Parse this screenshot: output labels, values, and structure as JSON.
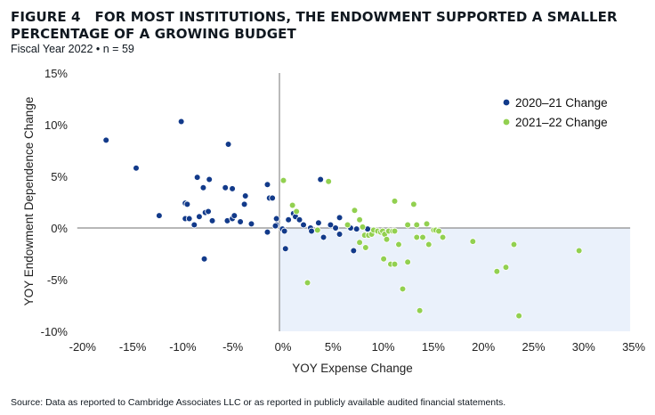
{
  "figure": {
    "title_prefix": "FIGURE 4",
    "title": "FOR MOST INSTITUTIONS, THE ENDOWMENT SUPPORTED A SMALLER PERCENTAGE OF A GROWING BUDGET",
    "subtitle": "Fiscal Year 2022 • n = 59",
    "source": "Source: Data as reported to Cambridge Associates LLC or as reported in publicly available audited financial statements."
  },
  "chart_data": {
    "type": "scatter",
    "title": "FOR MOST INSTITUTIONS, THE ENDOWMENT SUPPORTED A SMALLER PERCENTAGE OF A GROWING BUDGET",
    "subtitle": "Fiscal Year 2022 • n = 59",
    "xlabel": "YOY Expense Change",
    "ylabel": "YOY Endowment Dependence Change",
    "xlim": [
      -20,
      35
    ],
    "ylim": [
      -10,
      15
    ],
    "x_ticks": [
      -20,
      -15,
      -10,
      -5,
      0,
      5,
      10,
      15,
      20,
      25,
      30,
      35
    ],
    "y_ticks": [
      -10,
      -5,
      0,
      5,
      10,
      15
    ],
    "x_tick_labels": [
      "-20%",
      "-15%",
      "-10%",
      "-5%",
      "0%",
      "5%",
      "10%",
      "15%",
      "20%",
      "25%",
      "30%",
      "35%"
    ],
    "y_tick_labels": [
      "-10%",
      "-5%",
      "0%",
      "5%",
      "10%",
      "15%"
    ],
    "grid": false,
    "legend_position": "top-right",
    "shaded_region": {
      "x": [
        0,
        35
      ],
      "y": [
        -10,
        0
      ],
      "color": "#eaf1fb"
    },
    "series": [
      {
        "name": "2020–21 Change",
        "color": "#123a8a",
        "points": [
          [
            -17.3,
            8.5
          ],
          [
            -14.3,
            5.8
          ],
          [
            -12.0,
            1.2
          ],
          [
            -9.8,
            10.3
          ],
          [
            -5.1,
            8.1
          ],
          [
            -8.2,
            4.9
          ],
          [
            -7.0,
            4.7
          ],
          [
            -7.6,
            3.9
          ],
          [
            -5.4,
            3.9
          ],
          [
            -4.7,
            3.8
          ],
          [
            -3.4,
            3.1
          ],
          [
            -3.5,
            2.3
          ],
          [
            -1.2,
            4.2
          ],
          [
            -9.4,
            2.4
          ],
          [
            -9.2,
            2.3
          ],
          [
            -9.4,
            0.9
          ],
          [
            -9.0,
            0.9
          ],
          [
            -8.0,
            1.1
          ],
          [
            -7.4,
            1.5
          ],
          [
            -7.1,
            1.6
          ],
          [
            -6.7,
            0.7
          ],
          [
            -8.5,
            0.3
          ],
          [
            -5.2,
            0.7
          ],
          [
            -4.7,
            0.9
          ],
          [
            -4.5,
            1.2
          ],
          [
            -3.9,
            0.6
          ],
          [
            -2.8,
            0.4
          ],
          [
            -1.2,
            -0.4
          ],
          [
            -7.5,
            -3.0
          ],
          [
            -1.0,
            2.9
          ],
          [
            -0.7,
            2.9
          ],
          [
            -0.3,
            0.9
          ],
          [
            -0.3,
            0.3
          ],
          [
            -0.4,
            0.2
          ],
          [
            0.3,
            -0.1
          ],
          [
            0.5,
            -0.3
          ],
          [
            0.6,
            -2.0
          ],
          [
            0.9,
            0.8
          ],
          [
            1.4,
            1.4
          ],
          [
            1.6,
            1.1
          ],
          [
            2.0,
            0.8
          ],
          [
            2.4,
            0.3
          ],
          [
            3.1,
            0.0
          ],
          [
            3.2,
            -0.3
          ],
          [
            3.9,
            0.5
          ],
          [
            4.1,
            4.7
          ],
          [
            5.1,
            0.3
          ],
          [
            5.6,
            0.0
          ],
          [
            6.0,
            1.0
          ],
          [
            6.0,
            -0.6
          ],
          [
            4.4,
            -0.9
          ],
          [
            7.1,
            0.0
          ],
          [
            7.4,
            -2.2
          ],
          [
            7.7,
            -0.1
          ],
          [
            8.8,
            -0.1
          ]
        ]
      },
      {
        "name": "2021–22 Change",
        "color": "#92d050",
        "points": [
          [
            0.4,
            4.6
          ],
          [
            4.9,
            4.5
          ],
          [
            1.3,
            2.2
          ],
          [
            1.7,
            1.6
          ],
          [
            3.8,
            -0.2
          ],
          [
            2.8,
            -5.3
          ],
          [
            7.5,
            1.7
          ],
          [
            6.8,
            0.3
          ],
          [
            8.0,
            0.8
          ],
          [
            8.3,
            0.1
          ],
          [
            8.5,
            -0.7
          ],
          [
            8.9,
            -0.7
          ],
          [
            8.0,
            -1.4
          ],
          [
            8.6,
            -1.9
          ],
          [
            9.2,
            -0.6
          ],
          [
            9.4,
            -0.2
          ],
          [
            9.8,
            -0.3
          ],
          [
            10.1,
            -0.4
          ],
          [
            10.3,
            -0.3
          ],
          [
            10.5,
            -0.6
          ],
          [
            10.7,
            -1.1
          ],
          [
            10.9,
            -0.3
          ],
          [
            11.3,
            -0.3
          ],
          [
            11.5,
            -0.3
          ],
          [
            11.5,
            2.6
          ],
          [
            10.4,
            -3.0
          ],
          [
            11.1,
            -3.5
          ],
          [
            11.5,
            -3.5
          ],
          [
            11.9,
            -1.6
          ],
          [
            12.8,
            0.3
          ],
          [
            13.7,
            0.3
          ],
          [
            13.4,
            2.3
          ],
          [
            13.7,
            -0.9
          ],
          [
            14.3,
            -0.9
          ],
          [
            14.7,
            0.4
          ],
          [
            14.9,
            -1.6
          ],
          [
            12.8,
            -3.3
          ],
          [
            12.3,
            -5.9
          ],
          [
            14.0,
            -8.0
          ],
          [
            15.4,
            -0.2
          ],
          [
            15.6,
            -0.2
          ],
          [
            15.9,
            -0.3
          ],
          [
            16.3,
            -0.9
          ],
          [
            19.3,
            -1.3
          ],
          [
            23.4,
            -1.6
          ],
          [
            21.7,
            -4.2
          ],
          [
            22.6,
            -3.8
          ],
          [
            29.9,
            -2.2
          ],
          [
            23.9,
            -8.5
          ]
        ]
      }
    ]
  }
}
